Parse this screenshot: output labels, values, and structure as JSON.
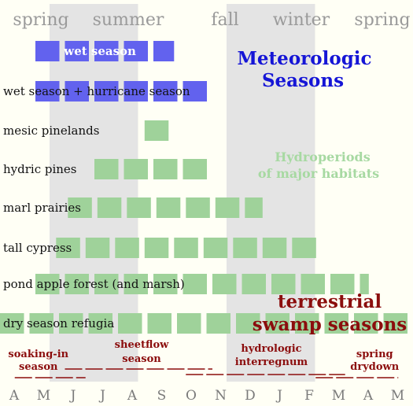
{
  "colors": {
    "background": "#fffff5",
    "seasonBand": "#e4e4e4",
    "meteorologic": "#6262ee",
    "hydroperiod": "#9fd29a",
    "headerText": "#9a9a9a",
    "meteorologicTitle": "#1515d6",
    "hydroTitle": "#a7d9a2",
    "swamp": "#8b0d0d",
    "monthText": "#7a7a7a",
    "labelText": "#111111"
  },
  "chart_data": {
    "type": "bar",
    "orientation": "horizontal-range",
    "months": [
      "A",
      "M",
      "J",
      "J",
      "A",
      "S",
      "O",
      "N",
      "D",
      "J",
      "F",
      "M",
      "A",
      "M"
    ],
    "seasons": [
      {
        "label": "spring",
        "shaded": false
      },
      {
        "label": "summer",
        "shaded": true
      },
      {
        "label": "fall",
        "shaded": false
      },
      {
        "label": "winter",
        "shaded": true
      },
      {
        "label": "spring",
        "shaded": false
      }
    ],
    "season_bands": [
      {
        "start": 2.0,
        "end": 5.0
      },
      {
        "start": 8.0,
        "end": 11.0
      }
    ],
    "meteorologic_title": [
      "Meteorologic",
      "Seasons"
    ],
    "hydroperiod_title": [
      "Hydroperiods",
      "of major habitats"
    ],
    "swamp_title": [
      "terrestrial",
      "swamp seasons"
    ],
    "series": [
      {
        "name": "wet season",
        "group": "meteorologic",
        "start": 1.2,
        "end": 5.9,
        "label_inside": true
      },
      {
        "name": "wet season + hurricane season",
        "group": "meteorologic",
        "start": 1.2,
        "end": 7.1,
        "label_inside": false
      },
      {
        "name": "mesic pinelands",
        "group": "hydroperiod",
        "start": 4.9,
        "end": 5.9,
        "label_inside": false
      },
      {
        "name": "hydric pines",
        "group": "hydroperiod",
        "start": 3.2,
        "end": 7.1,
        "label_inside": false
      },
      {
        "name": "marl prairies",
        "group": "hydroperiod",
        "start": 2.3,
        "end": 8.9,
        "label_inside": false
      },
      {
        "name": "tall cypress",
        "group": "hydroperiod",
        "start": 1.9,
        "end": 10.8,
        "label_inside": false
      },
      {
        "name": "pond apple forest (and marsh)",
        "group": "hydroperiod",
        "start": 1.2,
        "end": 12.5,
        "label_inside": false
      },
      {
        "name": "dry season refugia",
        "group": "hydroperiod",
        "start": 0.0,
        "end": 14.0,
        "label_inside": false
      }
    ],
    "swamp_seasons": [
      {
        "label": [
          "soaking-in",
          "season"
        ],
        "center": 1.3,
        "line_start": 0.5,
        "line_end": 2.9
      },
      {
        "label": [
          "sheetflow",
          "season"
        ],
        "center": 4.8,
        "line_start": 2.2,
        "line_end": 7.2
      },
      {
        "label": [
          "hydrologic",
          "interregnum"
        ],
        "center": 9.2,
        "line_start": 6.3,
        "line_end": 11.7
      },
      {
        "label": [
          "spring",
          "drydown"
        ],
        "center": 12.7,
        "line_start": 10.7,
        "line_end": 13.5
      }
    ]
  }
}
